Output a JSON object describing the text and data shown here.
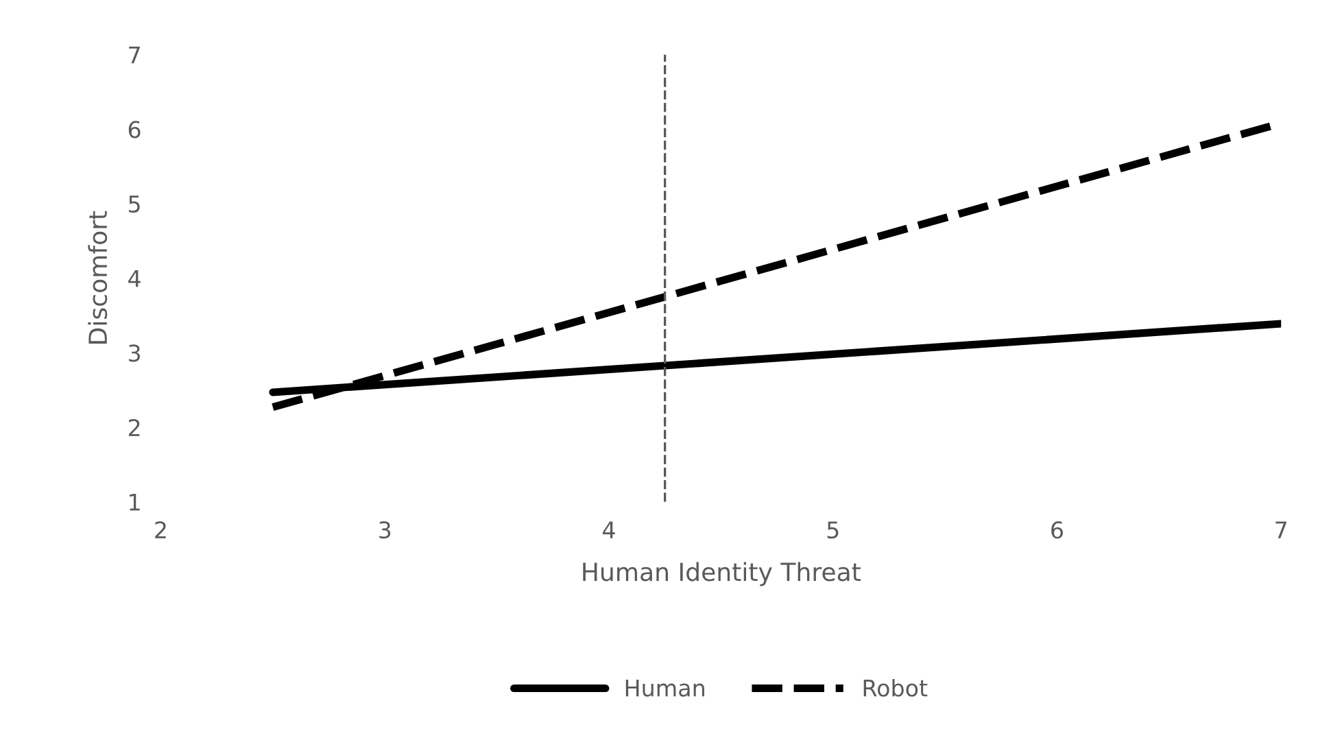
{
  "chart_data": {
    "type": "line",
    "xlabel": "Human Identity Threat",
    "ylabel": "Discomfort",
    "xlim": [
      2,
      7
    ],
    "xticks": [
      2,
      3,
      4,
      5,
      6,
      7
    ],
    "ylim": [
      1,
      7
    ],
    "yticks": [
      1,
      2,
      3,
      4,
      5,
      6,
      7
    ],
    "x": [
      2.5,
      7
    ],
    "series": [
      {
        "name": "Human",
        "color": "#000000",
        "values": [
          2.47,
          3.39
        ],
        "line_style": "solid"
      },
      {
        "name": "Robot",
        "color": "#000000",
        "values": [
          2.27,
          6.08
        ],
        "line_style": "dashed"
      }
    ],
    "ref_lines": [
      {
        "axis": "x",
        "value": 4.25,
        "color": "#595959",
        "line_style": "dashed"
      }
    ],
    "grid": false,
    "legend": "bottom",
    "marker": "none"
  }
}
